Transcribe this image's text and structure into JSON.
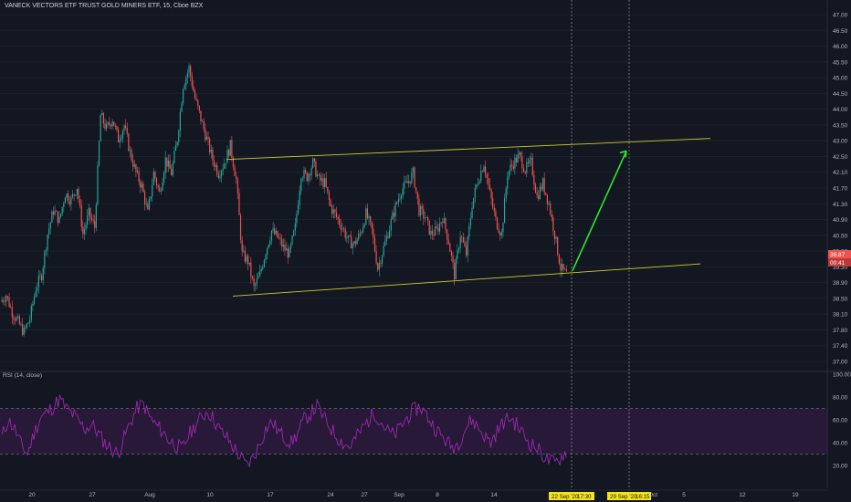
{
  "header": {
    "title": "VANECK VECTORS ETF TRUST GOLD MINERS ETF, 15, Cboe BZX"
  },
  "rsi": {
    "label": "RSI (14, close)"
  },
  "colors": {
    "background": "#131722",
    "grid": "#1e222d",
    "up": "#26a69a",
    "down": "#ef5350",
    "trendline": "#c5d12e",
    "arrow": "#2ee62e",
    "rsi_line": "#9c27b0",
    "rsi_band": "#2a1a3a",
    "badge": "#ef5350",
    "date_badge": "#f5e31a"
  },
  "chart_data": [
    {
      "type": "candlestick",
      "title": "VANECK VECTORS ETF TRUST GOLD MINERS ETF, 15, Cboe BZX",
      "y_ticks": [
        "47.00",
        "46.50",
        "46.00",
        "45.50",
        "45.00",
        "44.50",
        "44.00",
        "43.50",
        "43.00",
        "42.50",
        "42.10",
        "41.70",
        "41.30",
        "40.90",
        "40.50",
        "39.80",
        "39.30",
        "38.90",
        "38.50",
        "38.10",
        "37.80",
        "37.40",
        "37.00"
      ],
      "ylim": [
        36.8,
        47.3
      ],
      "x_ticks": [
        "20",
        "27",
        "Aug",
        "10",
        "17",
        "24",
        "27",
        "Sep",
        "8",
        "14",
        "22 Sep '20",
        "17:30",
        "29 Sep '20",
        "16:15",
        "Oct",
        "5",
        "12",
        "19"
      ],
      "price_labels": [
        "39.87",
        "00:41"
      ],
      "series": [
        {
          "values": [
            38.8,
            39.0,
            38.5,
            38.2,
            37.9,
            38.3,
            39.2,
            39.6,
            40.8,
            41.5,
            41.2,
            42.0,
            41.8,
            42.2,
            40.8,
            41.4,
            41.0,
            44.3,
            43.9,
            44.2,
            43.6,
            44.0,
            43.2,
            42.6,
            42.2,
            41.4,
            42.6,
            42.0,
            43.0,
            42.6,
            43.6,
            45.2,
            45.7,
            44.8,
            44.2,
            43.6,
            43.0,
            42.6,
            42.9,
            43.4,
            42.4,
            40.2,
            40.0,
            39.2,
            39.6,
            40.3,
            40.9,
            40.7,
            40.4,
            40.2,
            41.0,
            42.6,
            42.5,
            42.9,
            42.4,
            42.3,
            41.6,
            41.3,
            41.0,
            40.6,
            40.5,
            40.8,
            41.4,
            40.9,
            39.8,
            40.4,
            41.0,
            41.6,
            42.1,
            42.3,
            42.6,
            41.5,
            41.3,
            40.8,
            40.9,
            41.3,
            40.6,
            39.6,
            40.8,
            40.2,
            41.7,
            42.4,
            42.9,
            42.0,
            41.2,
            40.8,
            42.6,
            42.9,
            43.1,
            42.7,
            42.9,
            41.9,
            42.3,
            41.7,
            40.8,
            39.8,
            39.6
          ]
        }
      ]
    },
    {
      "type": "line",
      "title": "RSI (14, close)",
      "y_ticks": [
        "100.00",
        "80.00",
        "60.00",
        "40.00",
        "20.00"
      ],
      "ylim": [
        0,
        100
      ],
      "series": [
        {
          "values": [
            45,
            60,
            52,
            38,
            30,
            48,
            62,
            66,
            72,
            78,
            70,
            65,
            58,
            52,
            56,
            48,
            40,
            35,
            30,
            44,
            58,
            70,
            74,
            62,
            55,
            50,
            42,
            38,
            34,
            46,
            55,
            62,
            68,
            60,
            50,
            44,
            36,
            28,
            20,
            26,
            38,
            52,
            58,
            50,
            44,
            40,
            48,
            60,
            66,
            72,
            62,
            54,
            46,
            40,
            36,
            44,
            52,
            60,
            66,
            58,
            50,
            46,
            54,
            62,
            68,
            72,
            64,
            56,
            48,
            42,
            36,
            40,
            52,
            60,
            54,
            46,
            40,
            50,
            58,
            62,
            56,
            48,
            40,
            36,
            30,
            24,
            22,
            28,
            34
          ]
        }
      ]
    }
  ]
}
